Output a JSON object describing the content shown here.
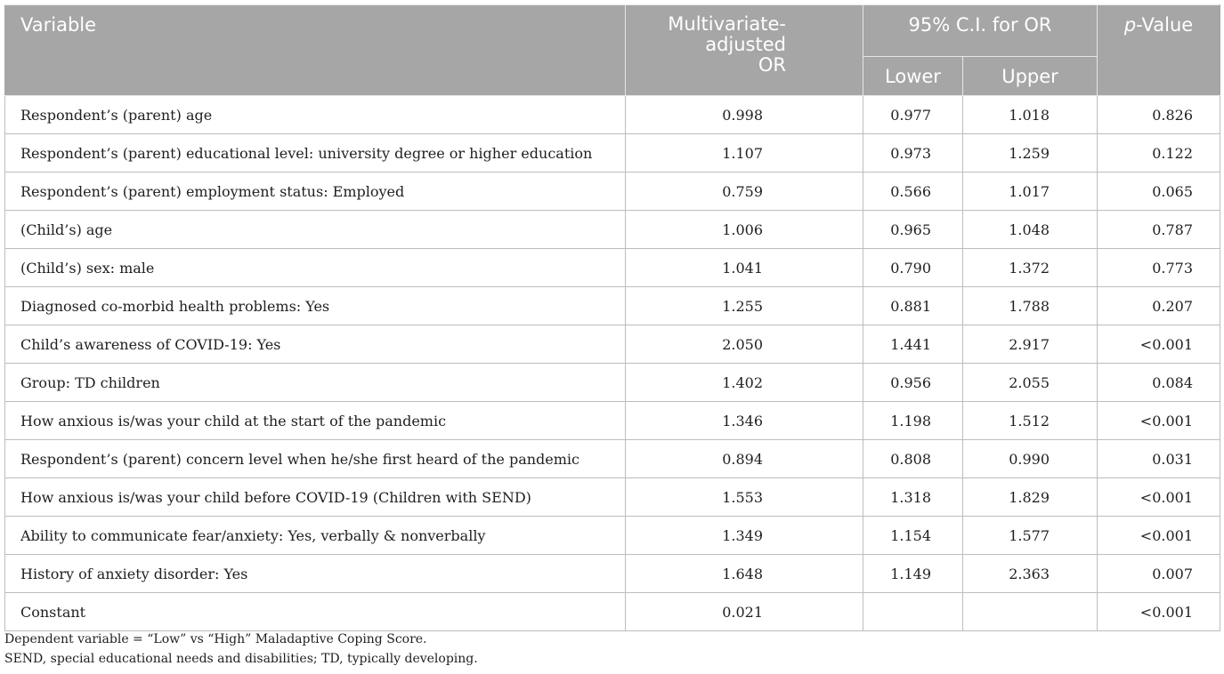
{
  "header": {
    "variable": "Variable",
    "or_line1": "Multivariate-",
    "or_line2": "adjusted",
    "or_line3": "OR",
    "ci": "95% C.I. for OR",
    "lower": "Lower",
    "upper": "Upper",
    "p_italic": "p",
    "p_rest": "-Value"
  },
  "rows": [
    {
      "variable": "Respondent’s (parent) age",
      "or": "0.998",
      "lower": "0.977",
      "upper": "1.018",
      "p": "0.826"
    },
    {
      "variable": "Respondent’s (parent) educational level: university degree or higher education",
      "or": "1.107",
      "lower": "0.973",
      "upper": "1.259",
      "p": "0.122"
    },
    {
      "variable": "Respondent’s (parent) employment status: Employed",
      "or": "0.759",
      "lower": "0.566",
      "upper": "1.017",
      "p": "0.065"
    },
    {
      "variable": "(Child’s) age",
      "or": "1.006",
      "lower": "0.965",
      "upper": "1.048",
      "p": "0.787"
    },
    {
      "variable": "(Child’s) sex: male",
      "or": "1.041",
      "lower": "0.790",
      "upper": "1.372",
      "p": "0.773"
    },
    {
      "variable": "Diagnosed co-morbid health problems: Yes",
      "or": "1.255",
      "lower": "0.881",
      "upper": "1.788",
      "p": "0.207"
    },
    {
      "variable": "Child’s awareness of COVID-19: Yes",
      "or": "2.050",
      "lower": "1.441",
      "upper": "2.917",
      "p": "<0.001"
    },
    {
      "variable": "Group: TD children",
      "or": "1.402",
      "lower": "0.956",
      "upper": "2.055",
      "p": "0.084"
    },
    {
      "variable": "How anxious is/was your child at the start of the pandemic",
      "or": "1.346",
      "lower": "1.198",
      "upper": "1.512",
      "p": "<0.001"
    },
    {
      "variable": "Respondent’s (parent) concern level when he/she first heard of the pandemic",
      "or": "0.894",
      "lower": "0.808",
      "upper": "0.990",
      "p": "0.031"
    },
    {
      "variable": "How anxious is/was your child before COVID-19 (Children with SEND)",
      "or": "1.553",
      "lower": "1.318",
      "upper": "1.829",
      "p": "<0.001"
    },
    {
      "variable": "Ability to communicate fear/anxiety: Yes, verbally & nonverbally",
      "or": "1.349",
      "lower": "1.154",
      "upper": "1.577",
      "p": "<0.001"
    },
    {
      "variable": "History of anxiety disorder: Yes",
      "or": "1.648",
      "lower": "1.149",
      "upper": "2.363",
      "p": "0.007"
    },
    {
      "variable": "Constant",
      "or": "0.021",
      "lower": "",
      "upper": "",
      "p": "<0.001"
    }
  ],
  "footnotes": [
    "Dependent variable = “Low” vs “High” Maladaptive Coping Score.",
    "SEND, special educational needs and disabilities; TD, typically developing."
  ]
}
